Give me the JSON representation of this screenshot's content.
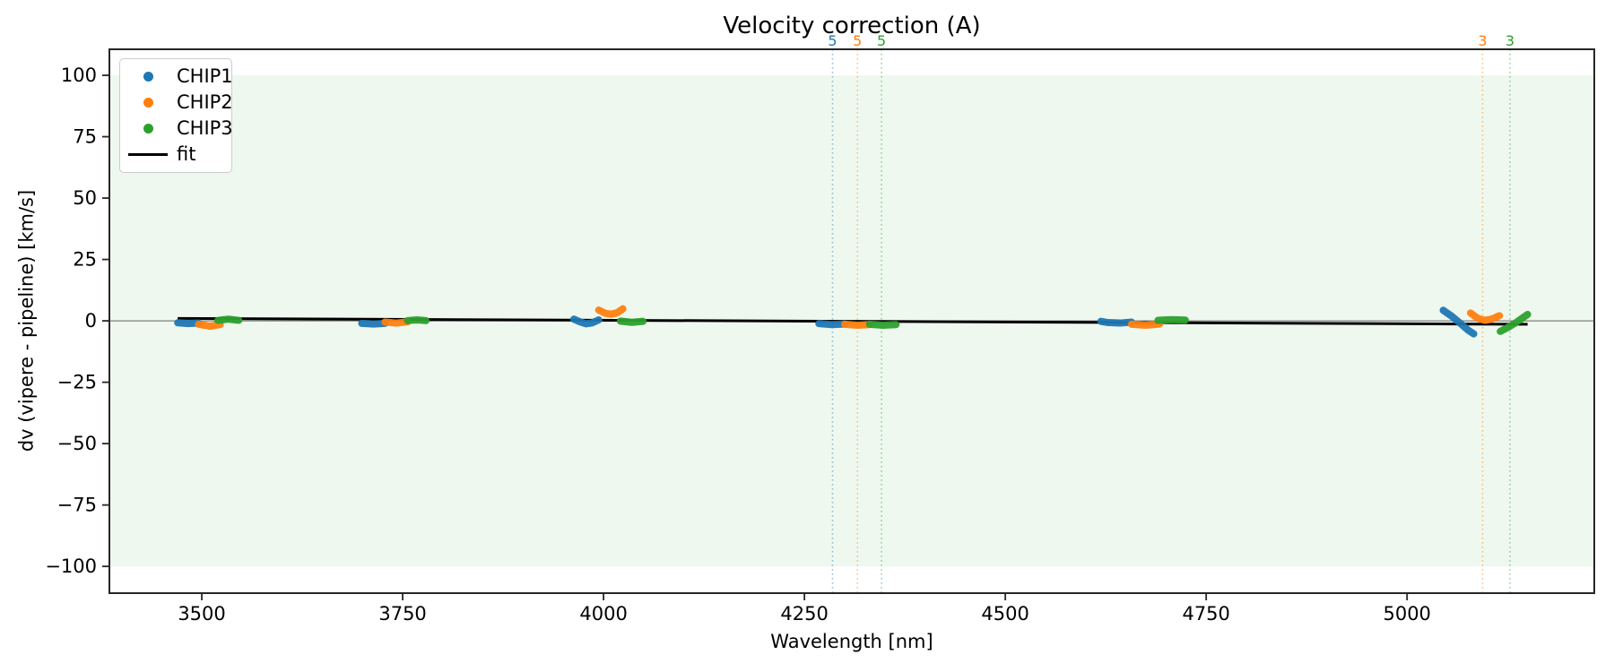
{
  "figure": {
    "background": "#ffffff",
    "spine_color": "#262626",
    "tick_color": "#262626"
  },
  "chart_data": {
    "type": "scatter",
    "title": "Velocity correction (A)",
    "xlabel": "Wavelength [nm]",
    "ylabel": "dv (vipere - pipeline) [km/s]",
    "xlim": [
      3385,
      5233
    ],
    "ylim": [
      -110.9,
      110.6
    ],
    "xticks": [
      3500,
      3750,
      4000,
      4250,
      4500,
      4750,
      5000
    ],
    "yticks": [
      -100,
      -75,
      -50,
      -25,
      0,
      25,
      50,
      75,
      100
    ],
    "grid": false,
    "band": {
      "ymin": -100,
      "ymax": 100,
      "color": "#2ca02c",
      "opacity": 0.08
    },
    "zero_line": {
      "y": 0,
      "color": "#808080"
    },
    "fit": {
      "name": "fit",
      "color": "#000000",
      "points": [
        [
          3470,
          1.0
        ],
        [
          5150,
          -1.4
        ]
      ]
    },
    "series": [
      {
        "name": "CHIP1",
        "color": "#1f77b4",
        "segments": [
          [
            [
              3470,
              -0.8
            ],
            [
              3483,
              -1.1
            ],
            [
              3496,
              -0.9
            ]
          ],
          [
            [
              3699,
              -1.0
            ],
            [
              3714,
              -1.3
            ],
            [
              3728,
              -1.0
            ]
          ],
          [
            [
              3963,
              0.7
            ],
            [
              3970,
              -0.3
            ],
            [
              3978,
              -1.2
            ],
            [
              3986,
              -0.8
            ],
            [
              3994,
              0.4
            ]
          ],
          [
            [
              4268,
              -1.1
            ],
            [
              4284,
              -1.5
            ],
            [
              4300,
              -1.3
            ]
          ],
          [
            [
              4619,
              -0.2
            ],
            [
              4628,
              -0.7
            ],
            [
              4643,
              -0.9
            ],
            [
              4657,
              -0.5
            ]
          ],
          [
            [
              5045,
              4.3
            ],
            [
              5056,
              1.8
            ],
            [
              5068,
              -1.5
            ],
            [
              5076,
              -3.8
            ],
            [
              5083,
              -5.3
            ]
          ]
        ]
      },
      {
        "name": "CHIP2",
        "color": "#ff7f0e",
        "segments": [
          [
            [
              3496,
              -1.4
            ],
            [
              3510,
              -2.2
            ],
            [
              3523,
              -1.5
            ]
          ],
          [
            [
              3728,
              -0.5
            ],
            [
              3742,
              -0.9
            ],
            [
              3756,
              -0.4
            ]
          ],
          [
            [
              3994,
              4.4
            ],
            [
              4002,
              3.1
            ],
            [
              4009,
              2.7
            ],
            [
              4017,
              3.3
            ],
            [
              4024,
              4.9
            ]
          ],
          [
            [
              4300,
              -1.4
            ],
            [
              4316,
              -1.8
            ],
            [
              4331,
              -1.5
            ]
          ],
          [
            [
              4657,
              -1.4
            ],
            [
              4675,
              -1.8
            ],
            [
              4692,
              -1.3
            ]
          ],
          [
            [
              5079,
              3.2
            ],
            [
              5088,
              1.0
            ],
            [
              5097,
              0.2
            ],
            [
              5106,
              0.8
            ],
            [
              5115,
              2.1
            ]
          ]
        ]
      },
      {
        "name": "CHIP3",
        "color": "#2ca02c",
        "segments": [
          [
            [
              3520,
              0.2
            ],
            [
              3533,
              0.7
            ],
            [
              3546,
              0.2
            ]
          ],
          [
            [
              3756,
              0.1
            ],
            [
              3768,
              0.4
            ],
            [
              3779,
              0.1
            ]
          ],
          [
            [
              4021,
              -0.1
            ],
            [
              4035,
              -0.6
            ],
            [
              4049,
              -0.2
            ]
          ],
          [
            [
              4331,
              -1.4
            ],
            [
              4348,
              -1.8
            ],
            [
              4364,
              -1.5
            ]
          ],
          [
            [
              4690,
              0.2
            ],
            [
              4707,
              0.5
            ],
            [
              4724,
              0.3
            ]
          ],
          [
            [
              5116,
              -4.3
            ],
            [
              5126,
              -2.6
            ],
            [
              5136,
              -0.6
            ],
            [
              5150,
              2.6
            ]
          ]
        ]
      }
    ],
    "vlines": [
      {
        "x": 4285,
        "label": "5",
        "color": "#1f77b4"
      },
      {
        "x": 4316,
        "label": "5",
        "color": "#ff7f0e"
      },
      {
        "x": 4346,
        "label": "5",
        "color": "#2ca02c"
      },
      {
        "x": 5094,
        "label": "3",
        "color": "#ff7f0e"
      },
      {
        "x": 5128,
        "label": "3",
        "color": "#2ca02c"
      }
    ],
    "legend": {
      "position": "upper left",
      "entries": [
        {
          "label": "CHIP1",
          "marker": "dot",
          "color": "#1f77b4"
        },
        {
          "label": "CHIP2",
          "marker": "dot",
          "color": "#ff7f0e"
        },
        {
          "label": "CHIP3",
          "marker": "dot",
          "color": "#2ca02c"
        },
        {
          "label": "fit",
          "marker": "line",
          "color": "#000000"
        }
      ]
    }
  }
}
